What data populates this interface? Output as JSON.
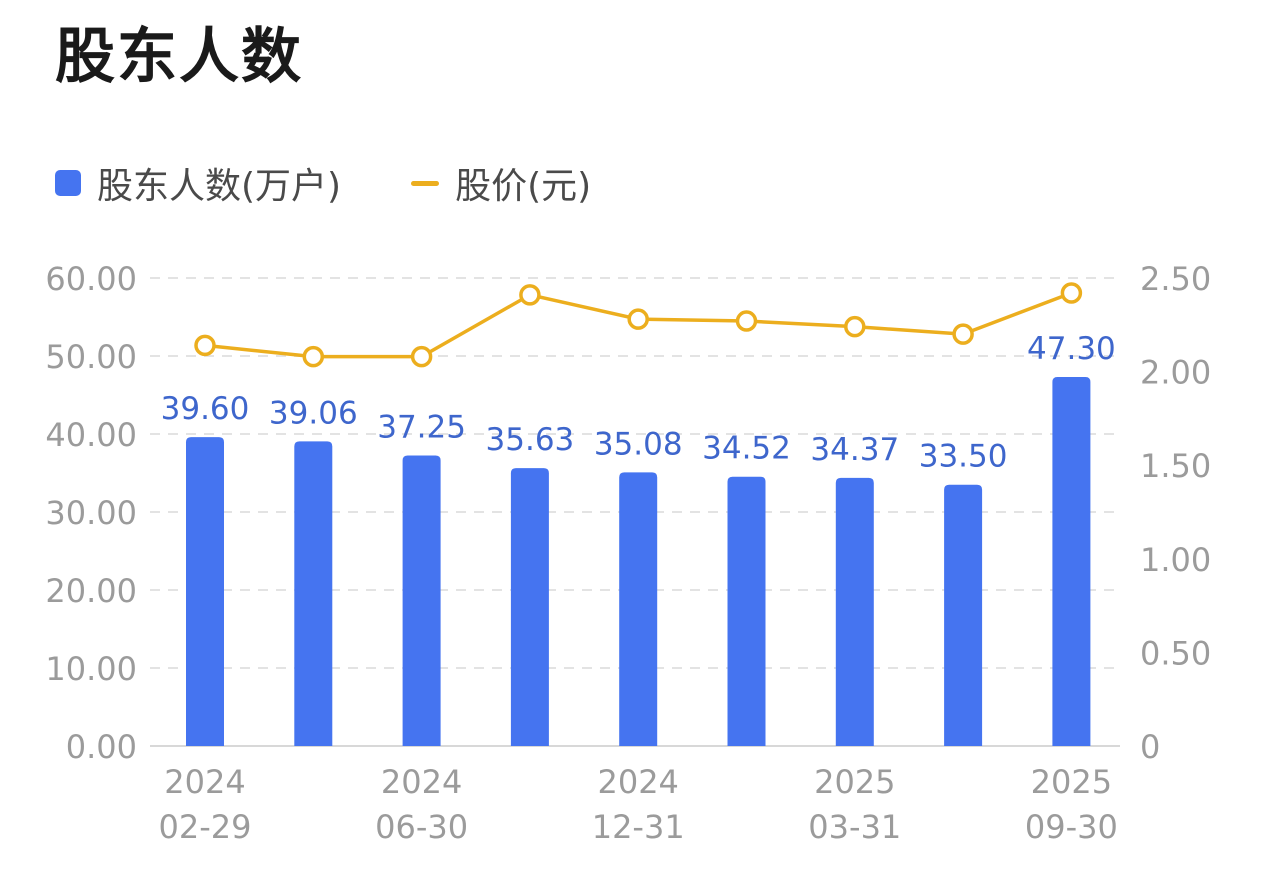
{
  "title": "股东人数",
  "legend": {
    "bar_label": "股东人数(万户)",
    "line_label": "股价(元)"
  },
  "colors": {
    "bar": "#4574F0",
    "bar_label": "#3E66CC",
    "line": "#ECAE1E",
    "grid": "#E3E3E3",
    "tick": "#9B9B9B"
  },
  "chart_data": {
    "type": "bar",
    "categories": [
      "2024-02-29",
      "",
      "2024-06-30",
      "",
      "2024-12-31",
      "",
      "2025-03-31",
      "",
      "2025-09-30"
    ],
    "x_tick_labels": [
      {
        "index": 0,
        "line1": "2024",
        "line2": "02-29"
      },
      {
        "index": 2,
        "line1": "2024",
        "line2": "06-30"
      },
      {
        "index": 4,
        "line1": "2024",
        "line2": "12-31"
      },
      {
        "index": 6,
        "line1": "2025",
        "line2": "03-31"
      },
      {
        "index": 8,
        "line1": "2025",
        "line2": "09-30"
      }
    ],
    "series": [
      {
        "name": "股东人数(万户)",
        "type": "bar",
        "axis": "left",
        "values": [
          39.6,
          39.06,
          37.25,
          35.63,
          35.08,
          34.52,
          34.37,
          33.5,
          47.3
        ],
        "labels": [
          "39.60",
          "39.06",
          "37.25",
          "35.63",
          "35.08",
          "34.52",
          "34.37",
          "33.50",
          "47.30"
        ]
      },
      {
        "name": "股价(元)",
        "type": "line",
        "axis": "right",
        "values": [
          2.14,
          2.08,
          2.08,
          2.41,
          2.28,
          2.27,
          2.24,
          2.2,
          2.42
        ]
      }
    ],
    "y_left": {
      "min": 0,
      "max": 60,
      "ticks": [
        "0.00",
        "10.00",
        "20.00",
        "30.00",
        "40.00",
        "50.00",
        "60.00"
      ]
    },
    "y_right": {
      "min": 0,
      "max": 2.5,
      "ticks": [
        "0",
        "0.50",
        "1.00",
        "1.50",
        "2.00",
        "2.50"
      ]
    },
    "grid": true,
    "legend_position": "top-left"
  }
}
